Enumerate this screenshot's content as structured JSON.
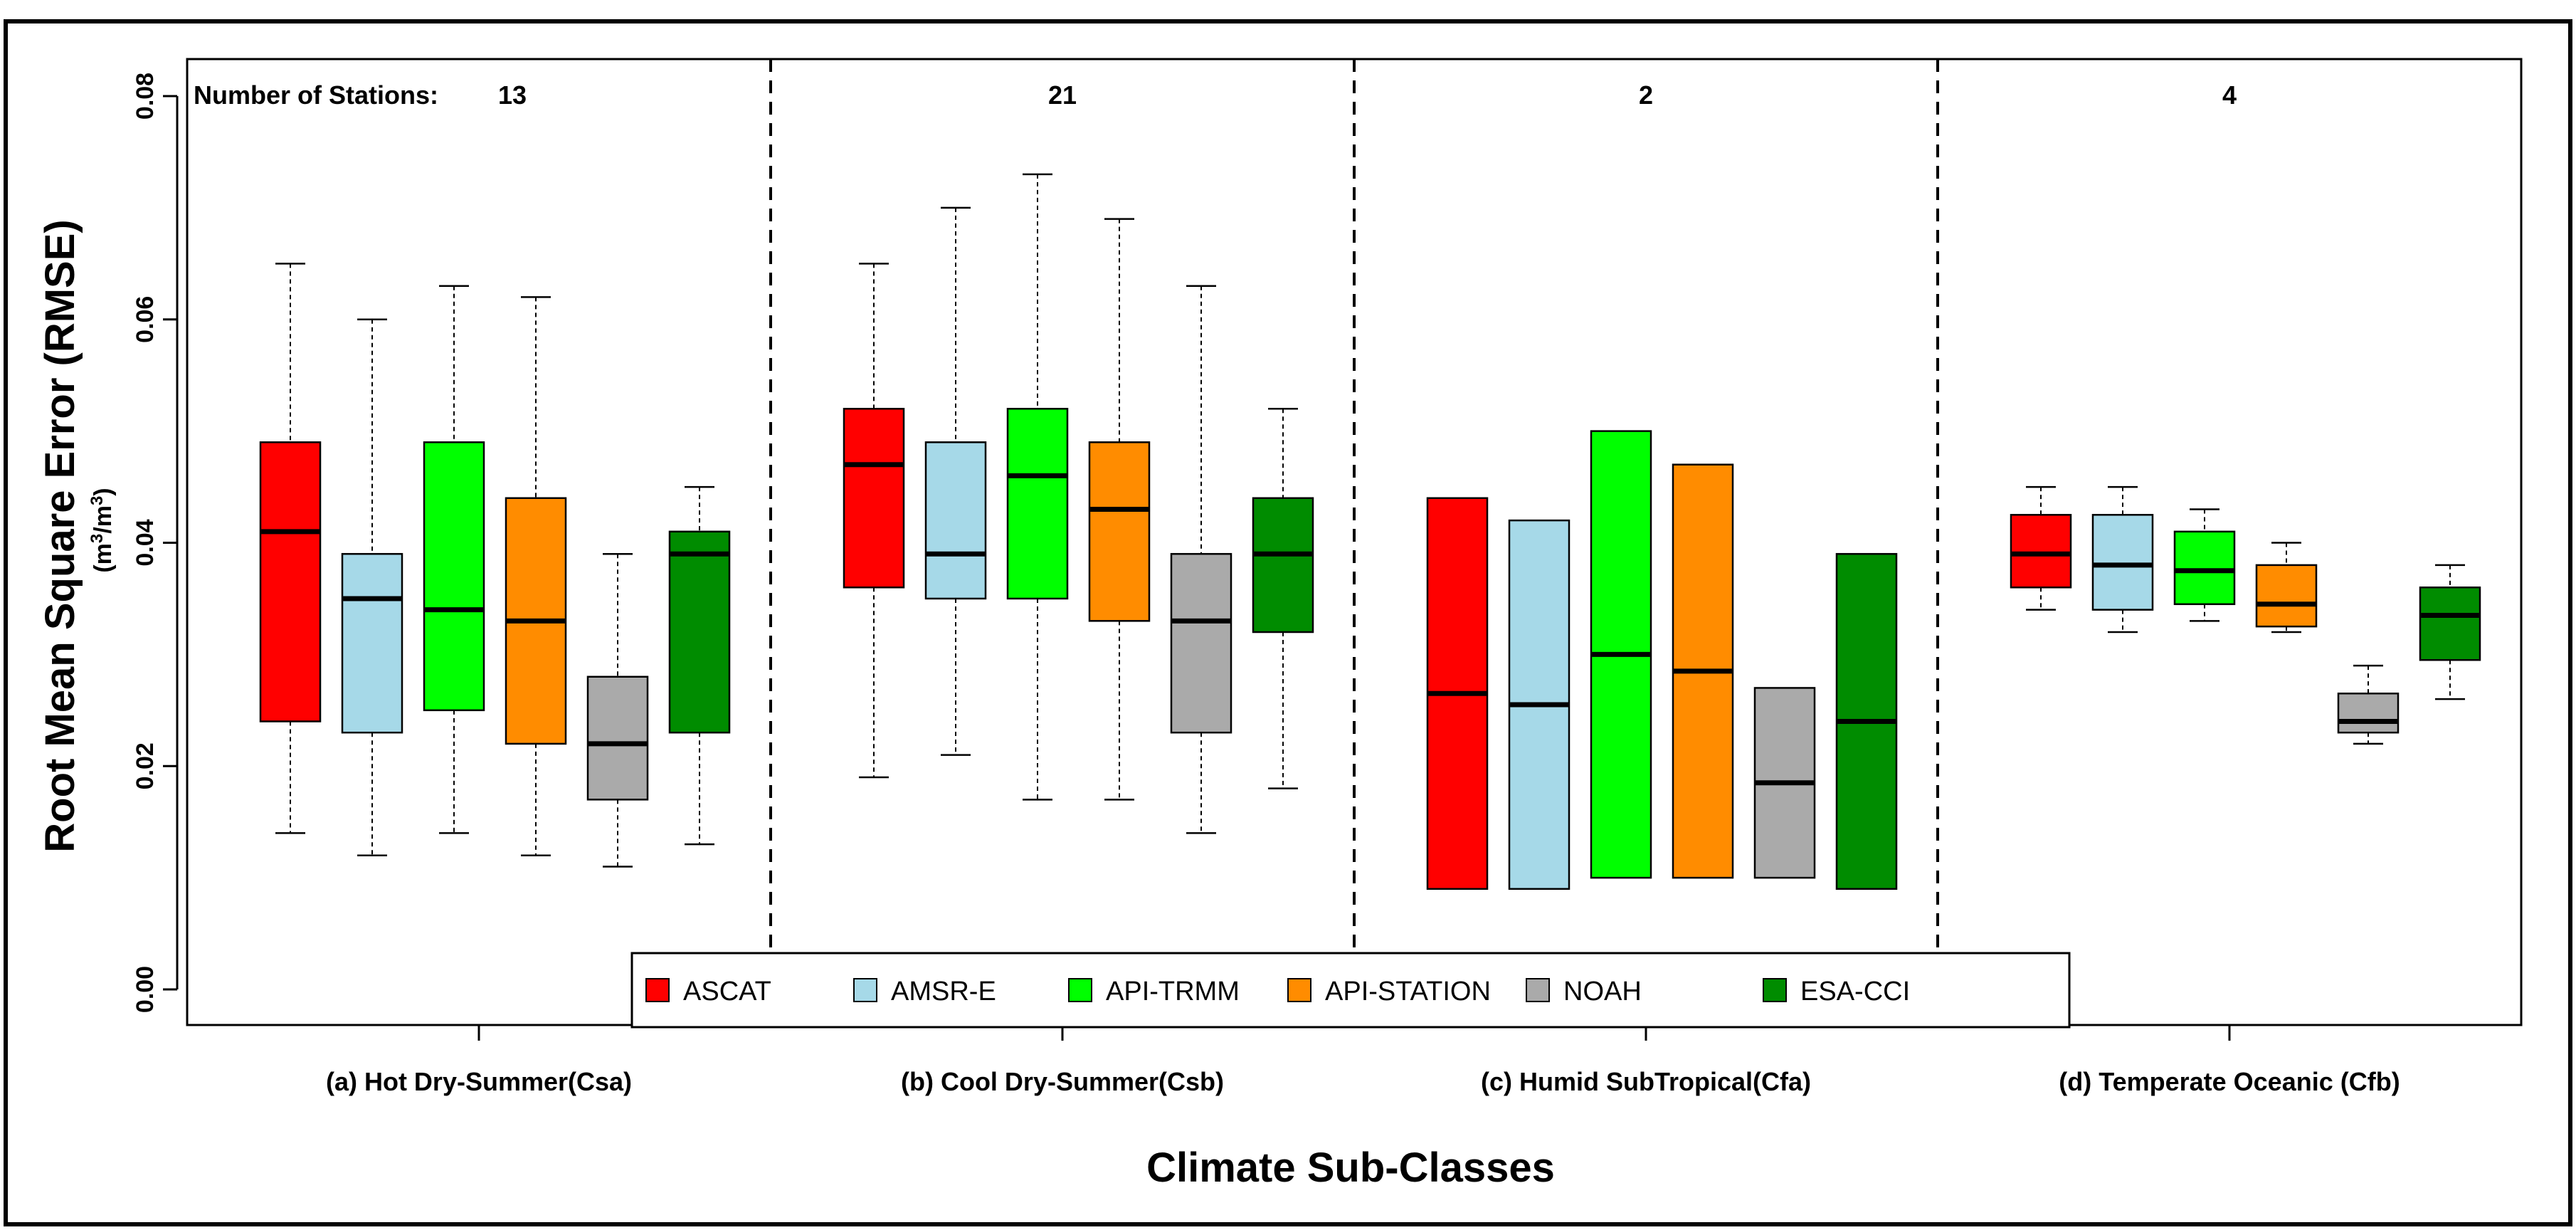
{
  "chart_data": {
    "type": "boxplot",
    "xlabel": "Climate Sub-Classes",
    "ylabel": "Root Mean Square Error (RMSE)",
    "yunit_base": "(m",
    "yunit_exp1": "3",
    "yunit_mid": "/m",
    "yunit_exp2": "3",
    "yunit_end": ")",
    "ylim": [
      0,
      0.08
    ],
    "yticks": [
      "0.00",
      "0.02",
      "0.04",
      "0.06",
      "0.08"
    ],
    "ytick_values": [
      0,
      0.02,
      0.04,
      0.06,
      0.08
    ],
    "stations_prefix": "Number of Stations:",
    "legend_position": "bottom-center",
    "series": [
      {
        "name": "ASCAT",
        "color": "#ff0000"
      },
      {
        "name": "AMSR-E",
        "color": "#a6d9e8"
      },
      {
        "name": "API-TRMM",
        "color": "#00ff00"
      },
      {
        "name": "API-STATION",
        "color": "#ff8c00"
      },
      {
        "name": "NOAH",
        "color": "#aaaaaa"
      },
      {
        "name": "ESA-CCI",
        "color": "#008c00"
      }
    ],
    "groups": [
      {
        "label": "(a) Hot Dry-Summer(Csa)",
        "stations": "13",
        "boxes": [
          {
            "min": 0.014,
            "q1": 0.024,
            "median": 0.041,
            "q3": 0.049,
            "max": 0.065
          },
          {
            "min": 0.012,
            "q1": 0.023,
            "median": 0.035,
            "q3": 0.039,
            "max": 0.06
          },
          {
            "min": 0.014,
            "q1": 0.025,
            "median": 0.034,
            "q3": 0.049,
            "max": 0.063
          },
          {
            "min": 0.012,
            "q1": 0.022,
            "median": 0.033,
            "q3": 0.044,
            "max": 0.062
          },
          {
            "min": 0.011,
            "q1": 0.017,
            "median": 0.022,
            "q3": 0.028,
            "max": 0.039
          },
          {
            "min": 0.013,
            "q1": 0.023,
            "median": 0.039,
            "q3": 0.041,
            "max": 0.045
          }
        ]
      },
      {
        "label": "(b) Cool Dry-Summer(Csb)",
        "stations": "21",
        "boxes": [
          {
            "min": 0.019,
            "q1": 0.036,
            "median": 0.047,
            "q3": 0.052,
            "max": 0.065
          },
          {
            "min": 0.021,
            "q1": 0.035,
            "median": 0.039,
            "q3": 0.049,
            "max": 0.07
          },
          {
            "min": 0.017,
            "q1": 0.035,
            "median": 0.046,
            "q3": 0.052,
            "max": 0.073
          },
          {
            "min": 0.017,
            "q1": 0.033,
            "median": 0.043,
            "q3": 0.049,
            "max": 0.069
          },
          {
            "min": 0.014,
            "q1": 0.023,
            "median": 0.033,
            "q3": 0.039,
            "max": 0.063
          },
          {
            "min": 0.018,
            "q1": 0.032,
            "median": 0.039,
            "q3": 0.044,
            "max": 0.052
          }
        ]
      },
      {
        "label": "(c) Humid SubTropical(Cfa)",
        "stations": "2",
        "boxes": [
          {
            "min": 0.009,
            "q1": 0.009,
            "median": 0.0265,
            "q3": 0.044,
            "max": 0.044
          },
          {
            "min": 0.009,
            "q1": 0.009,
            "median": 0.0255,
            "q3": 0.042,
            "max": 0.042
          },
          {
            "min": 0.01,
            "q1": 0.01,
            "median": 0.03,
            "q3": 0.05,
            "max": 0.05
          },
          {
            "min": 0.01,
            "q1": 0.01,
            "median": 0.0285,
            "q3": 0.047,
            "max": 0.047
          },
          {
            "min": 0.01,
            "q1": 0.01,
            "median": 0.0185,
            "q3": 0.027,
            "max": 0.027
          },
          {
            "min": 0.009,
            "q1": 0.009,
            "median": 0.024,
            "q3": 0.039,
            "max": 0.039
          }
        ]
      },
      {
        "label": "(d) Temperate Oceanic (Cfb)",
        "stations": "4",
        "boxes": [
          {
            "min": 0.034,
            "q1": 0.036,
            "median": 0.039,
            "q3": 0.0425,
            "max": 0.045
          },
          {
            "min": 0.032,
            "q1": 0.034,
            "median": 0.038,
            "q3": 0.0425,
            "max": 0.045
          },
          {
            "min": 0.033,
            "q1": 0.0345,
            "median": 0.0375,
            "q3": 0.041,
            "max": 0.043
          },
          {
            "min": 0.032,
            "q1": 0.0325,
            "median": 0.0345,
            "q3": 0.038,
            "max": 0.04
          },
          {
            "min": 0.022,
            "q1": 0.023,
            "median": 0.024,
            "q3": 0.0265,
            "max": 0.029
          },
          {
            "min": 0.026,
            "q1": 0.0295,
            "median": 0.0335,
            "q3": 0.036,
            "max": 0.038
          }
        ]
      }
    ]
  }
}
